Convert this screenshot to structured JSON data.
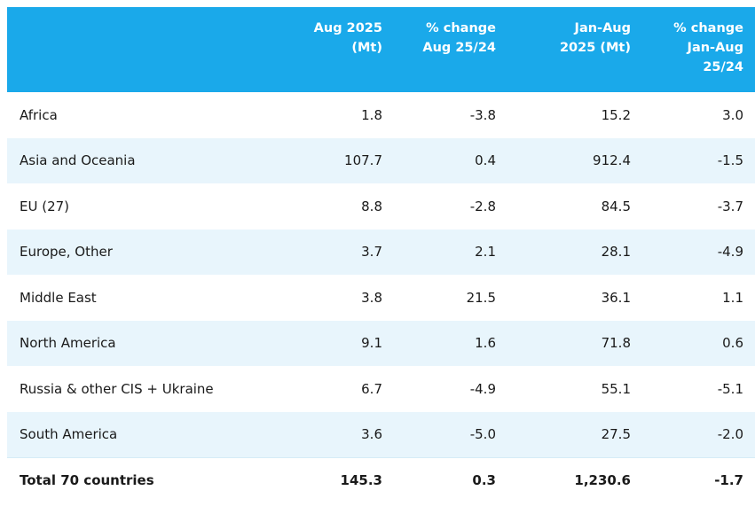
{
  "header": {
    "col0": "",
    "col1": "Aug 2025\n(Mt)",
    "col2": "% change\nAug 25/24",
    "col3": "Jan-Aug\n2025 (Mt)",
    "col4": "% change\nJan-Aug\n25/24"
  },
  "rows": [
    {
      "region": "Africa",
      "aug": "1.8",
      "aug_change": "-3.8",
      "ytd": "15.2",
      "ytd_change": "3.0"
    },
    {
      "region": "Asia and Oceania",
      "aug": "107.7",
      "aug_change": "0.4",
      "ytd": "912.4",
      "ytd_change": "-1.5"
    },
    {
      "region": "EU (27)",
      "aug": "8.8",
      "aug_change": "-2.8",
      "ytd": "84.5",
      "ytd_change": "-3.7"
    },
    {
      "region": "Europe, Other",
      "aug": "3.7",
      "aug_change": "2.1",
      "ytd": "28.1",
      "ytd_change": "-4.9"
    },
    {
      "region": "Middle East",
      "aug": "3.8",
      "aug_change": "21.5",
      "ytd": "36.1",
      "ytd_change": "1.1"
    },
    {
      "region": "North America",
      "aug": "9.1",
      "aug_change": "1.6",
      "ytd": "71.8",
      "ytd_change": "0.6"
    },
    {
      "region": "Russia & other CIS + Ukraine",
      "aug": "6.7",
      "aug_change": "-4.9",
      "ytd": "55.1",
      "ytd_change": "-5.1"
    },
    {
      "region": "South America",
      "aug": "3.6",
      "aug_change": "-5.0",
      "ytd": "27.5",
      "ytd_change": "-2.0"
    }
  ],
  "total": {
    "region": "Total 70 countries",
    "aug": "145.3",
    "aug_change": "0.3",
    "ytd": "1,230.6",
    "ytd_change": "-1.7"
  },
  "colors": {
    "header_bg": "#1aa9ea",
    "header_text": "#ffffff",
    "row_alt_bg": "#e8f5fc",
    "row_bg": "#ffffff"
  }
}
